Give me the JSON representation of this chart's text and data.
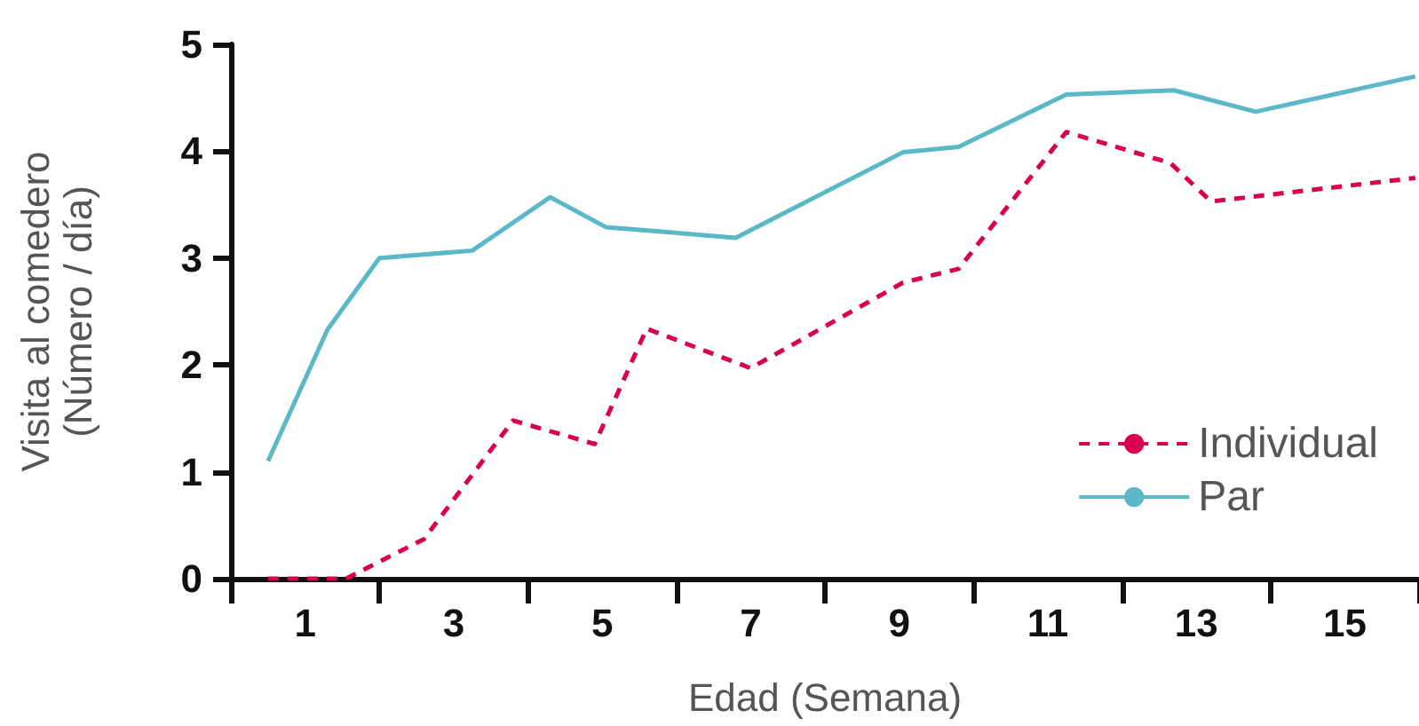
{
  "chart_data": {
    "type": "line",
    "xlabel": "Edad (Semana)",
    "ylabel": "Visita al comedero\n(Número / día)",
    "xlim": [
      0,
      16
    ],
    "xticks": [
      {
        "value": 0,
        "label": null
      },
      1,
      {
        "value": 2,
        "label": null
      },
      3,
      {
        "value": 4,
        "label": null
      },
      5,
      {
        "value": 6,
        "label": null
      },
      7,
      {
        "value": 8,
        "label": null
      },
      9,
      {
        "value": 10,
        "label": null
      },
      11,
      {
        "value": 12,
        "label": null
      },
      13,
      {
        "value": 14,
        "label": null
      },
      15,
      {
        "value": 16,
        "label": null
      }
    ],
    "ylim": [
      0,
      5
    ],
    "yticks": [
      0,
      1,
      2,
      3,
      4,
      5
    ],
    "grid": false,
    "legend": "bottom right",
    "marker": "none",
    "series": [
      {
        "name": "Individual",
        "color": "#d9004f",
        "line_style": "dashed",
        "x": [
          0.5,
          1.55,
          2.6,
          3.8,
          4.9,
          5.6,
          7.0,
          9.05,
          9.8,
          11.25,
          12.65,
          13.2,
          15.95
        ],
        "values": [
          0,
          0,
          0.37,
          1.48,
          1.26,
          2.34,
          1.97,
          2.77,
          2.9,
          4.18,
          3.89,
          3.53,
          3.75
        ]
      },
      {
        "name": "Par",
        "color": "#5bb8c9",
        "line_style": "solid",
        "x": [
          0.5,
          1.3,
          2.0,
          3.25,
          4.3,
          5.05,
          6.8,
          9.05,
          9.8,
          11.25,
          12.7,
          13.8,
          15.95
        ],
        "values": [
          1.1,
          2.33,
          3.0,
          3.07,
          3.57,
          3.29,
          3.19,
          3.99,
          4.04,
          4.53,
          4.57,
          4.37,
          4.7
        ]
      }
    ]
  }
}
